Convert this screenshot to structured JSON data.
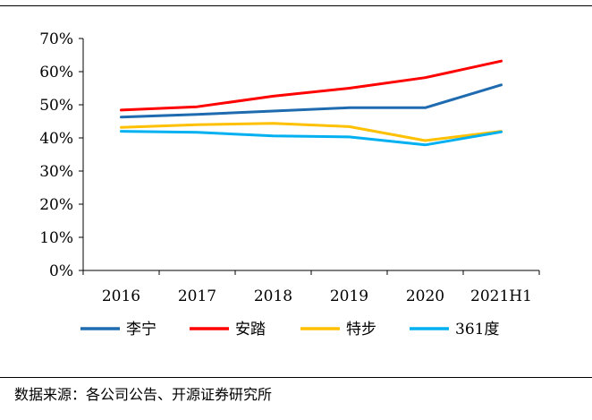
{
  "chart_data": {
    "type": "line",
    "categories": [
      "2016",
      "2017",
      "2018",
      "2019",
      "2020",
      "2021H1"
    ],
    "yticks": [
      "0%",
      "10%",
      "20%",
      "30%",
      "40%",
      "50%",
      "60%",
      "70%"
    ],
    "ylim": [
      0,
      70
    ],
    "grid": false,
    "legend_position": "bottom",
    "series": [
      {
        "name": "李宁",
        "values": [
          46.3,
          47.1,
          48.1,
          49.1,
          49.1,
          56.0
        ],
        "color": "#1f6bb0"
      },
      {
        "name": "安踏",
        "values": [
          48.4,
          49.4,
          52.6,
          55.0,
          58.2,
          63.2
        ],
        "color": "#ff0000"
      },
      {
        "name": "特步",
        "values": [
          43.2,
          44.0,
          44.4,
          43.4,
          39.2,
          42.0
        ],
        "color": "#ffc000"
      },
      {
        "name": "361度",
        "values": [
          42.0,
          41.7,
          40.6,
          40.3,
          37.9,
          41.8
        ],
        "color": "#00b0f0"
      }
    ]
  },
  "source_text": "数据来源：各公司公告、开源证券研究所"
}
